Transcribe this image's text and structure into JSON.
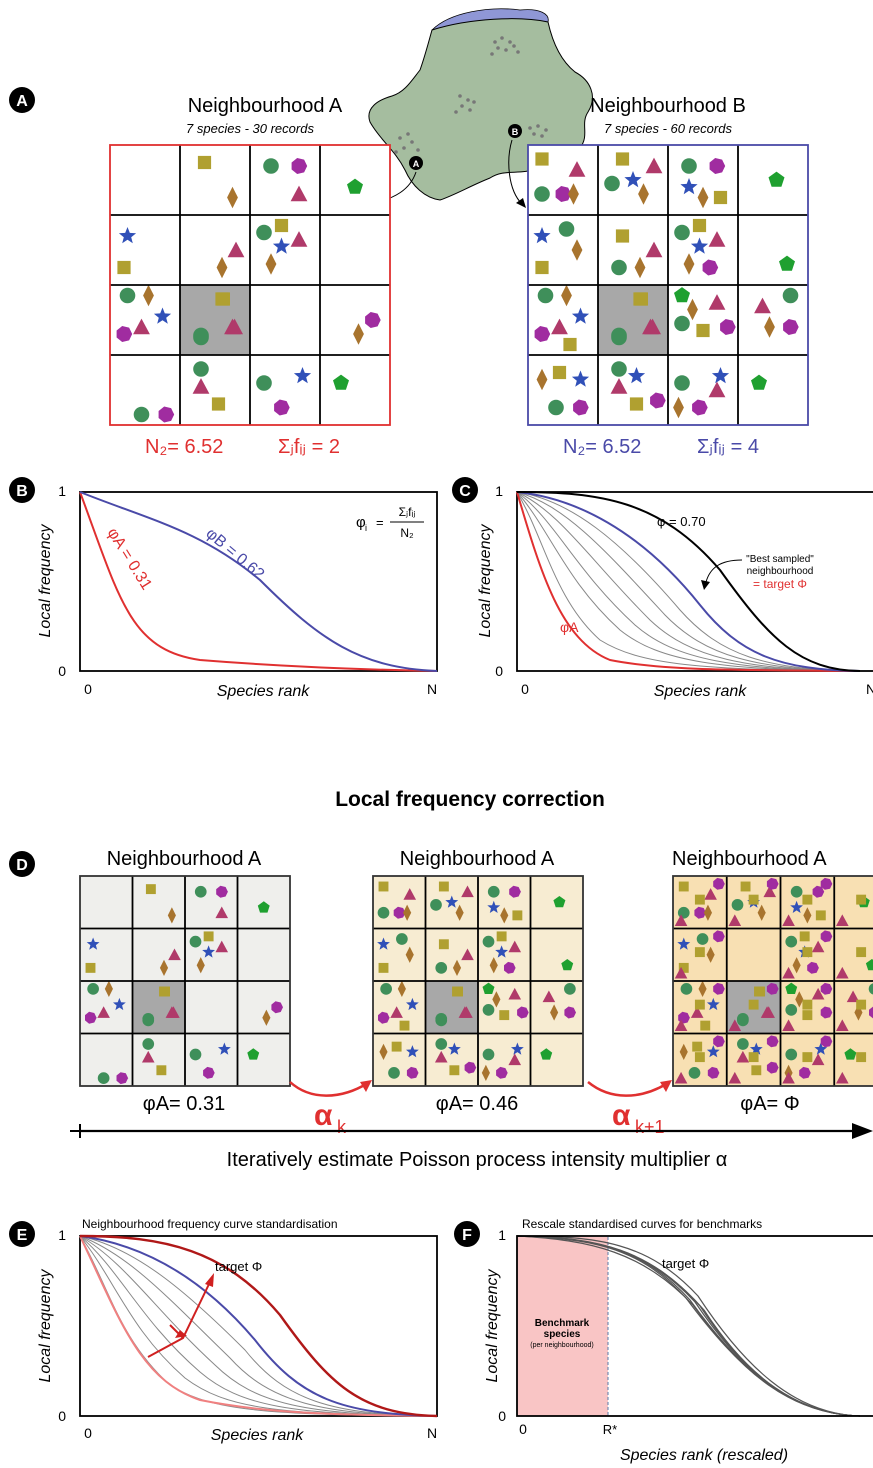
{
  "panels": {
    "A": {
      "badge": "A",
      "left_title": "Neighbourhood A",
      "left_subtitle": "7 species - 30 records",
      "right_title": "Neighbourhood B",
      "right_subtitle": "7 species - 60 records",
      "left_stats": {
        "n2": "N₂= 6.52",
        "sum": "Σⱼfᵢⱼ = 2"
      },
      "right_stats": {
        "n2": "N₂= 6.52",
        "sum": "Σⱼfᵢⱼ = 4"
      },
      "map_marker_a": "A",
      "map_marker_b": "B",
      "colors": {
        "neighbourhood_a": "#e03030",
        "neighbourhood_b": "#4a4aa8",
        "map": "#a5bd9f",
        "coast": "#8f97d6"
      }
    },
    "B": {
      "badge": "B",
      "ylabel": "Local frequency",
      "xlabel": "Species rank",
      "y_top": "1",
      "y_bottom": "0",
      "x_left": "0",
      "x_right": "N",
      "curve_a_label": "φA = 0.31",
      "curve_b_label": "φB = 0.62",
      "formula_lhs": "φ",
      "formula_sub": "i",
      "formula_eq": "=",
      "formula_num": "Σⱼfᵢⱼ",
      "formula_den": "N₂"
    },
    "C": {
      "badge": "C",
      "ylabel": "Local frequency",
      "xlabel": "Species rank",
      "y_top": "1",
      "y_bottom": "0",
      "x_left": "0",
      "x_right": "N",
      "phi_label": "φ = 0.70",
      "best_line1": "\"Best sampled\"",
      "best_line2": "neighbourhood",
      "best_line3": "= target Φ",
      "phi_a": "φA"
    },
    "D": {
      "badge": "D",
      "section_title": "Local frequency correction",
      "grid_titles": [
        "Neighbourhood A",
        "Neighbourhood A",
        "Neighbourhood A"
      ],
      "grid_values": [
        "φA= 0.31",
        "φA= 0.46",
        "φA= Φ"
      ],
      "alpha_k": "α",
      "alpha_k_sub": "k",
      "alpha_k1": "α",
      "alpha_k1_sub": "k+1",
      "arrow_caption": "Iteratively estimate Poisson process intensity multiplier α",
      "colors": {
        "grid1": "#efefec",
        "grid2": "#f7ecd2",
        "grid3": "#f8e0b3"
      }
    },
    "E": {
      "badge": "E",
      "title": "Neighbourhood frequency curve standardisation",
      "ylabel": "Local frequency",
      "xlabel": "Species rank",
      "y_top": "1",
      "y_bottom": "0",
      "x_left": "0",
      "x_right": "N",
      "target_label": "target Φ"
    },
    "F": {
      "badge": "F",
      "title": "Rescale standardised curves for benchmarks",
      "ylabel": "Local frequency",
      "xlabel": "Species rank (rescaled)",
      "y_top": "1",
      "y_bottom": "0",
      "x_left": "0",
      "x_mark": "R*",
      "target_label": "target Φ",
      "bench_line1": "Benchmark",
      "bench_line2": "species",
      "bench_line3": "(per neighbourhood)",
      "colors": {
        "benchmark_zone": "#f9c5c5"
      }
    }
  }
}
